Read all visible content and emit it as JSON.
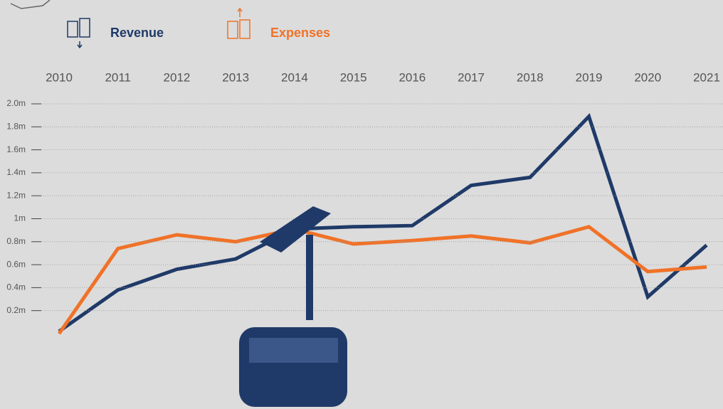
{
  "chart_data": {
    "type": "line",
    "categories": [
      "2010",
      "2011",
      "2012",
      "2013",
      "2014",
      "2015",
      "2016",
      "2017",
      "2018",
      "2019",
      "2020",
      "2021"
    ],
    "series": [
      {
        "name": "Revenue",
        "color": "#1f3a68",
        "values": [
          0.02,
          0.38,
          0.56,
          0.65,
          0.91,
          0.93,
          0.94,
          1.29,
          1.36,
          1.89,
          0.32,
          0.77
        ]
      },
      {
        "name": "Expenses",
        "color": "#f07228",
        "values": [
          0.0,
          0.74,
          0.86,
          0.8,
          0.91,
          0.78,
          0.81,
          0.85,
          0.79,
          0.93,
          0.54,
          0.58
        ]
      }
    ],
    "ylim": [
      0,
      2.0
    ],
    "yticks": [
      {
        "value": 0.2,
        "label": "0.2m"
      },
      {
        "value": 0.4,
        "label": "0.4m"
      },
      {
        "value": 0.6,
        "label": "0.6m"
      },
      {
        "value": 0.8,
        "label": "0.8m"
      },
      {
        "value": 1,
        "label": "1m"
      },
      {
        "value": 1.2,
        "label": "1.2m"
      },
      {
        "value": 1.4,
        "label": "1.4m"
      },
      {
        "value": 1.6,
        "label": "1.6m"
      },
      {
        "value": 1.8,
        "label": "1.8m"
      },
      {
        "value": 2.0,
        "label": "2.0m"
      }
    ],
    "grid": true
  }
}
